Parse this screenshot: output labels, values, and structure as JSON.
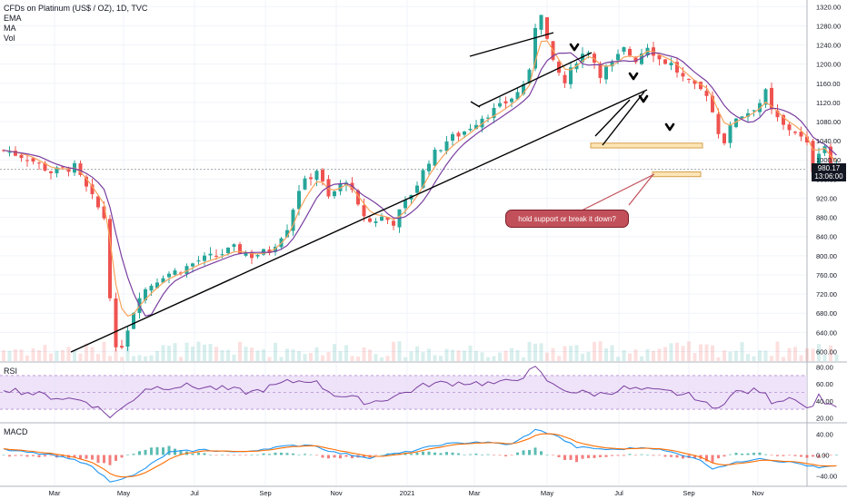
{
  "legend": {
    "title": "CFDs on Platinum (US$ / OZ), 1D, TVC",
    "indicators": [
      "EMA",
      "MA",
      "Vol"
    ]
  },
  "panes": {
    "rsi_label": "RSI",
    "macd_label": "MACD"
  },
  "last_price": {
    "value": "980.17",
    "countdown": "13:06:00"
  },
  "annotation": {
    "text": "hold support or break it down?"
  },
  "colors": {
    "up": "#26a69a",
    "down": "#ef5350",
    "ema": "#f7a35c",
    "ma": "#7b3fa0",
    "trendline": "#000000",
    "zone_fill": "#fce5b6",
    "zone_border": "#d4a04a",
    "rsi_band": "#eadcf7",
    "rsi_line": "#7b3fa0",
    "macd_line": "#2196f3",
    "signal_line": "#ff6d00",
    "callout": "#c2505a"
  },
  "chart_data": [
    {
      "type": "candlestick",
      "title": "CFDs on Platinum (US$ / OZ), 1D, TVC",
      "x_ticks": [
        "Mar",
        "May",
        "Jul",
        "Sep",
        "Nov",
        "2021",
        "Mar",
        "May",
        "Jul",
        "Sep",
        "Nov"
      ],
      "y_ticks": [
        600,
        640,
        680,
        720,
        760,
        800,
        840,
        880,
        920,
        960,
        1000,
        1040,
        1080,
        1120,
        1160,
        1200,
        1240,
        1280,
        1320
      ],
      "y_range": [
        580,
        1330
      ],
      "anchors": [
        [
          0,
          1020
        ],
        [
          4,
          1005
        ],
        [
          8,
          975
        ],
        [
          12,
          985
        ],
        [
          14,
          940
        ],
        [
          17,
          880
        ],
        [
          18,
          720
        ],
        [
          19,
          600
        ],
        [
          20,
          615
        ],
        [
          23,
          720
        ],
        [
          27,
          760
        ],
        [
          30,
          770
        ],
        [
          33,
          790
        ],
        [
          36,
          800
        ],
        [
          39,
          815
        ],
        [
          42,
          800
        ],
        [
          45,
          810
        ],
        [
          48,
          860
        ],
        [
          50,
          940
        ],
        [
          53,
          980
        ],
        [
          55,
          920
        ],
        [
          58,
          960
        ],
        [
          60,
          900
        ],
        [
          62,
          870
        ],
        [
          64,
          880
        ],
        [
          66,
          870
        ],
        [
          68,
          910
        ],
        [
          70,
          950
        ],
        [
          72,
          1000
        ],
        [
          75,
          1040
        ],
        [
          78,
          1060
        ],
        [
          81,
          1090
        ],
        [
          84,
          1110
        ],
        [
          87,
          1140
        ],
        [
          89,
          1180
        ],
        [
          90,
          1280
        ],
        [
          91,
          1310
        ],
        [
          92,
          1250
        ],
        [
          93,
          1200
        ],
        [
          95,
          1160
        ],
        [
          97,
          1210
        ],
        [
          99,
          1230
        ],
        [
          101,
          1180
        ],
        [
          103,
          1200
        ],
        [
          105,
          1230
        ],
        [
          107,
          1210
        ],
        [
          109,
          1240
        ],
        [
          111,
          1210
        ],
        [
          113,
          1200
        ],
        [
          115,
          1170
        ],
        [
          117,
          1150
        ],
        [
          119,
          1140
        ],
        [
          121,
          1060
        ],
        [
          122,
          1040
        ],
        [
          124,
          1090
        ],
        [
          126,
          1100
        ],
        [
          128,
          1120
        ],
        [
          129,
          1140
        ],
        [
          130,
          1100
        ],
        [
          132,
          1070
        ],
        [
          134,
          1060
        ],
        [
          136,
          1030
        ],
        [
          137,
          980
        ],
        [
          138,
          1020
        ],
        [
          139,
          1030
        ],
        [
          140,
          985
        ],
        [
          141,
          980
        ]
      ],
      "last_price": 980.17,
      "support_zones": [
        [
          1025,
          1035
        ],
        [
          965,
          975
        ]
      ],
      "trendlines": [
        {
          "from": [
            "Mar",
            590
          ],
          "to": [
            "Jul 2021",
            1140
          ]
        },
        {
          "from": [
            "Mar 2021",
            1210
          ],
          "to": [
            "May 2021",
            1270
          ]
        },
        {
          "from": [
            "Mar 2021",
            1115
          ],
          "to": [
            "Jun 2021",
            1225
          ]
        },
        {
          "from": [
            "Jul 2021",
            1030
          ],
          "to": [
            "Jul 2021",
            1135
          ]
        }
      ]
    },
    {
      "type": "line",
      "name": "RSI",
      "y_ticks": [
        20,
        40,
        60,
        80
      ],
      "band": [
        30,
        70
      ],
      "y_range": [
        15,
        85
      ],
      "anchors": [
        [
          0,
          55
        ],
        [
          8,
          45
        ],
        [
          14,
          40
        ],
        [
          18,
          22
        ],
        [
          20,
          30
        ],
        [
          24,
          55
        ],
        [
          30,
          58
        ],
        [
          36,
          55
        ],
        [
          42,
          50
        ],
        [
          48,
          62
        ],
        [
          52,
          65
        ],
        [
          56,
          48
        ],
        [
          62,
          38
        ],
        [
          66,
          45
        ],
        [
          72,
          60
        ],
        [
          78,
          62
        ],
        [
          84,
          60
        ],
        [
          88,
          70
        ],
        [
          90,
          78
        ],
        [
          93,
          58
        ],
        [
          97,
          50
        ],
        [
          101,
          48
        ],
        [
          105,
          55
        ],
        [
          109,
          52
        ],
        [
          113,
          50
        ],
        [
          117,
          45
        ],
        [
          120,
          30
        ],
        [
          124,
          50
        ],
        [
          128,
          52
        ],
        [
          130,
          40
        ],
        [
          134,
          45
        ],
        [
          136,
          30
        ],
        [
          138,
          45
        ],
        [
          140,
          35
        ]
      ]
    },
    {
      "type": "line",
      "name": "MACD",
      "y_ticks": [
        -40,
        0,
        40
      ],
      "y_range": [
        -60,
        60
      ],
      "anchors": [
        [
          0,
          10
        ],
        [
          8,
          0
        ],
        [
          14,
          -15
        ],
        [
          18,
          -50
        ],
        [
          22,
          -40
        ],
        [
          28,
          5
        ],
        [
          34,
          10
        ],
        [
          40,
          5
        ],
        [
          46,
          15
        ],
        [
          52,
          20
        ],
        [
          56,
          5
        ],
        [
          62,
          -5
        ],
        [
          68,
          5
        ],
        [
          74,
          20
        ],
        [
          80,
          25
        ],
        [
          86,
          20
        ],
        [
          90,
          48
        ],
        [
          93,
          40
        ],
        [
          97,
          15
        ],
        [
          103,
          10
        ],
        [
          109,
          15
        ],
        [
          113,
          5
        ],
        [
          117,
          -5
        ],
        [
          120,
          -25
        ],
        [
          124,
          -15
        ],
        [
          128,
          -5
        ],
        [
          130,
          -10
        ],
        [
          134,
          -15
        ],
        [
          138,
          -25
        ],
        [
          140,
          -22
        ]
      ]
    }
  ]
}
